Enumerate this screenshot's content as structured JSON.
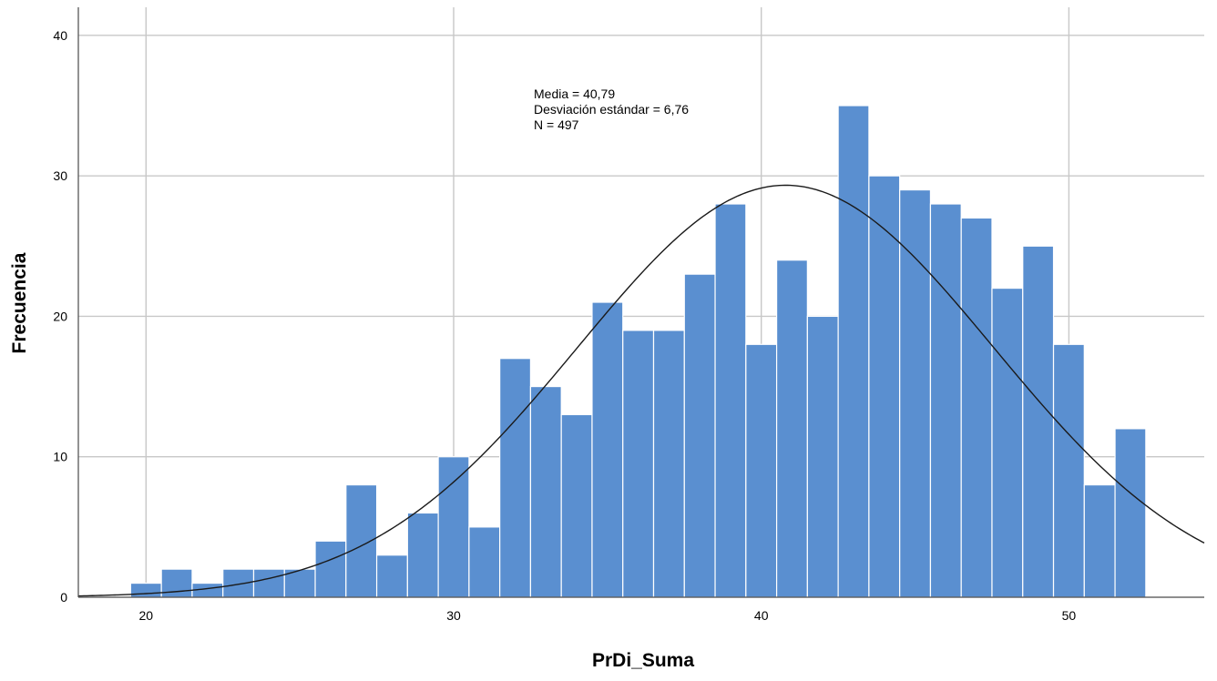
{
  "chart_data": {
    "type": "bar",
    "subtype": "histogram",
    "xlabel": "PrDi_Suma",
    "ylabel": "Frecuencia",
    "xlim": [
      17.8,
      54.4
    ],
    "ylim": [
      0,
      42
    ],
    "xticks": [
      20,
      30,
      40,
      50
    ],
    "yticks": [
      0,
      10,
      20,
      30,
      40
    ],
    "grid": true,
    "bins": [
      {
        "x": 20,
        "count": 1
      },
      {
        "x": 21,
        "count": 2
      },
      {
        "x": 22,
        "count": 1
      },
      {
        "x": 23,
        "count": 2
      },
      {
        "x": 24,
        "count": 2
      },
      {
        "x": 25,
        "count": 2
      },
      {
        "x": 26,
        "count": 4
      },
      {
        "x": 27,
        "count": 8
      },
      {
        "x": 28,
        "count": 3
      },
      {
        "x": 29,
        "count": 6
      },
      {
        "x": 30,
        "count": 10
      },
      {
        "x": 31,
        "count": 5
      },
      {
        "x": 32,
        "count": 17
      },
      {
        "x": 33,
        "count": 15
      },
      {
        "x": 34,
        "count": 13
      },
      {
        "x": 35,
        "count": 21
      },
      {
        "x": 36,
        "count": 19
      },
      {
        "x": 37,
        "count": 19
      },
      {
        "x": 38,
        "count": 23
      },
      {
        "x": 39,
        "count": 28
      },
      {
        "x": 40,
        "count": 18
      },
      {
        "x": 41,
        "count": 24
      },
      {
        "x": 42,
        "count": 20
      },
      {
        "x": 43,
        "count": 35
      },
      {
        "x": 44,
        "count": 30
      },
      {
        "x": 45,
        "count": 29
      },
      {
        "x": 46,
        "count": 28
      },
      {
        "x": 47,
        "count": 27
      },
      {
        "x": 48,
        "count": 22
      },
      {
        "x": 49,
        "count": 25
      },
      {
        "x": 50,
        "count": 18
      },
      {
        "x": 51,
        "count": 8
      },
      {
        "x": 52,
        "count": 12
      }
    ],
    "bin_width": 1,
    "normal_curve": {
      "mean": 40.79,
      "sd": 6.76,
      "n": 497
    },
    "stats": {
      "mean_label": "Media = 40,79",
      "sd_label": "Desviación estándar = 6,76",
      "n_label": "N = 497"
    },
    "colors": {
      "bar": "#5a8fd0",
      "curve": "#1a1a1a",
      "grid": "#c8c8c8"
    }
  }
}
